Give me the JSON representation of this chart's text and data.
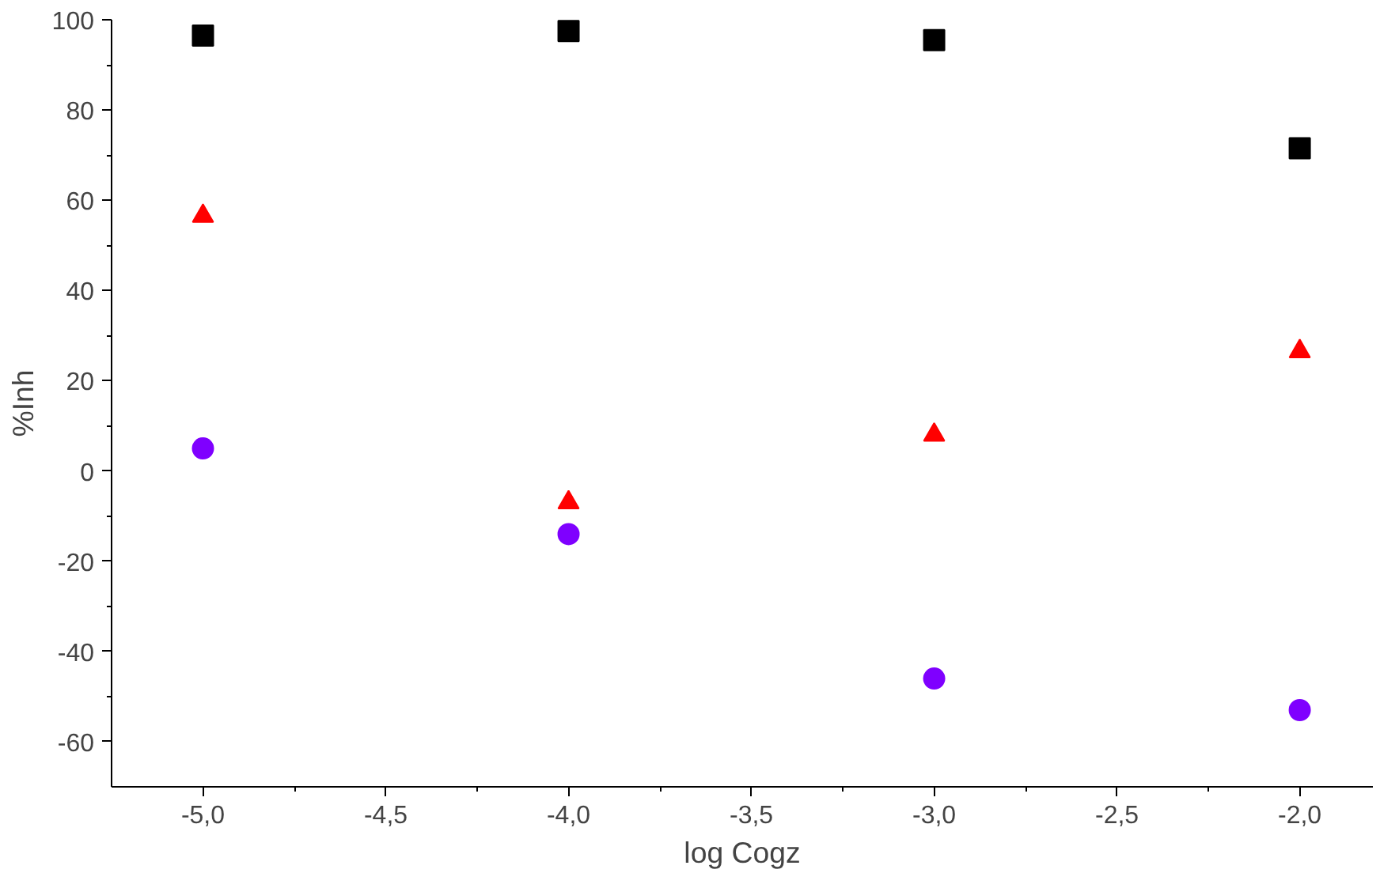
{
  "chart_data": {
    "type": "scatter",
    "xlabel": "log Cogz",
    "ylabel": "%Inh",
    "x": [
      -5,
      -4,
      -3,
      -2
    ],
    "series": [
      {
        "color": "#000000",
        "marker": "square",
        "values": [
          96.5,
          97.5,
          95.5,
          71.5
        ]
      },
      {
        "color": "#ff0000",
        "marker": "triangle",
        "values": [
          56.5,
          -7,
          8,
          26.5
        ]
      },
      {
        "color": "#7f00ff",
        "marker": "circle",
        "values": [
          5,
          -14,
          -46,
          -53
        ]
      }
    ],
    "xlim": [
      -5.25,
      -1.8
    ],
    "ylim": [
      -70,
      100
    ],
    "xticks": [
      {
        "value": -5,
        "label": "-5,0"
      },
      {
        "value": -4.5,
        "label": "-4,5"
      },
      {
        "value": -4,
        "label": "-4,0"
      },
      {
        "value": -3.5,
        "label": "-3,5"
      },
      {
        "value": -3,
        "label": "-3,0"
      },
      {
        "value": -2.5,
        "label": "-2,5"
      },
      {
        "value": -2,
        "label": "-2,0"
      }
    ],
    "yticks": [
      -60,
      -40,
      -20,
      0,
      20,
      40,
      60,
      80,
      100
    ],
    "grid": false
  }
}
